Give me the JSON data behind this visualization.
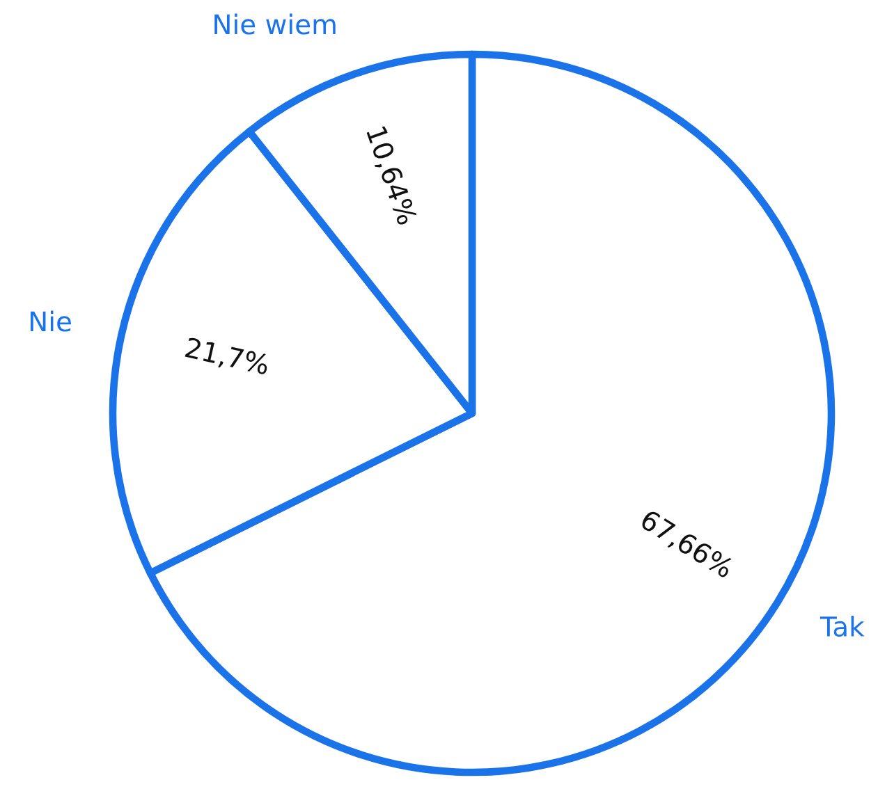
{
  "chart_data": {
    "type": "pie",
    "categories": [
      "Tak",
      "Nie",
      "Nie wiem"
    ],
    "values": [
      67.66,
      21.7,
      10.64
    ],
    "value_labels": [
      "67,66%",
      "21,7%",
      "10,64%"
    ],
    "colors": [
      "#ffffff",
      "#ffffff",
      "#ffffff"
    ],
    "color": "#1a73e8"
  }
}
